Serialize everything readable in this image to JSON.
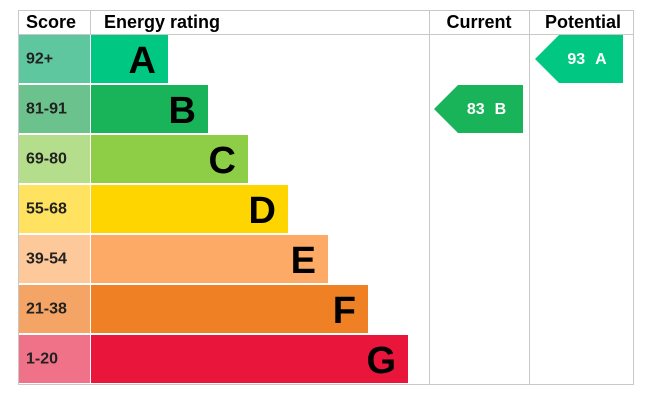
{
  "headers": {
    "score": "Score",
    "rating": "Energy rating",
    "current": "Current",
    "potential": "Potential"
  },
  "bands": [
    {
      "score": "92+",
      "letter": "A",
      "color": "#00c781",
      "cell_color": "#5fc7a0"
    },
    {
      "score": "81-91",
      "letter": "B",
      "color": "#19b459",
      "cell_color": "#6cc28c"
    },
    {
      "score": "69-80",
      "letter": "C",
      "color": "#8dce46",
      "cell_color": "#b4dd8c"
    },
    {
      "score": "55-68",
      "letter": "D",
      "color": "#ffd500",
      "cell_color": "#ffe25f"
    },
    {
      "score": "39-54",
      "letter": "E",
      "color": "#fcaa65",
      "cell_color": "#fdc99a"
    },
    {
      "score": "21-38",
      "letter": "F",
      "color": "#ef8023",
      "cell_color": "#f4a565"
    },
    {
      "score": "1-20",
      "letter": "G",
      "color": "#e9153b",
      "cell_color": "#f07288"
    }
  ],
  "current": {
    "score": 83,
    "rating": "B"
  },
  "potential": {
    "score": 93,
    "rating": "A"
  }
}
